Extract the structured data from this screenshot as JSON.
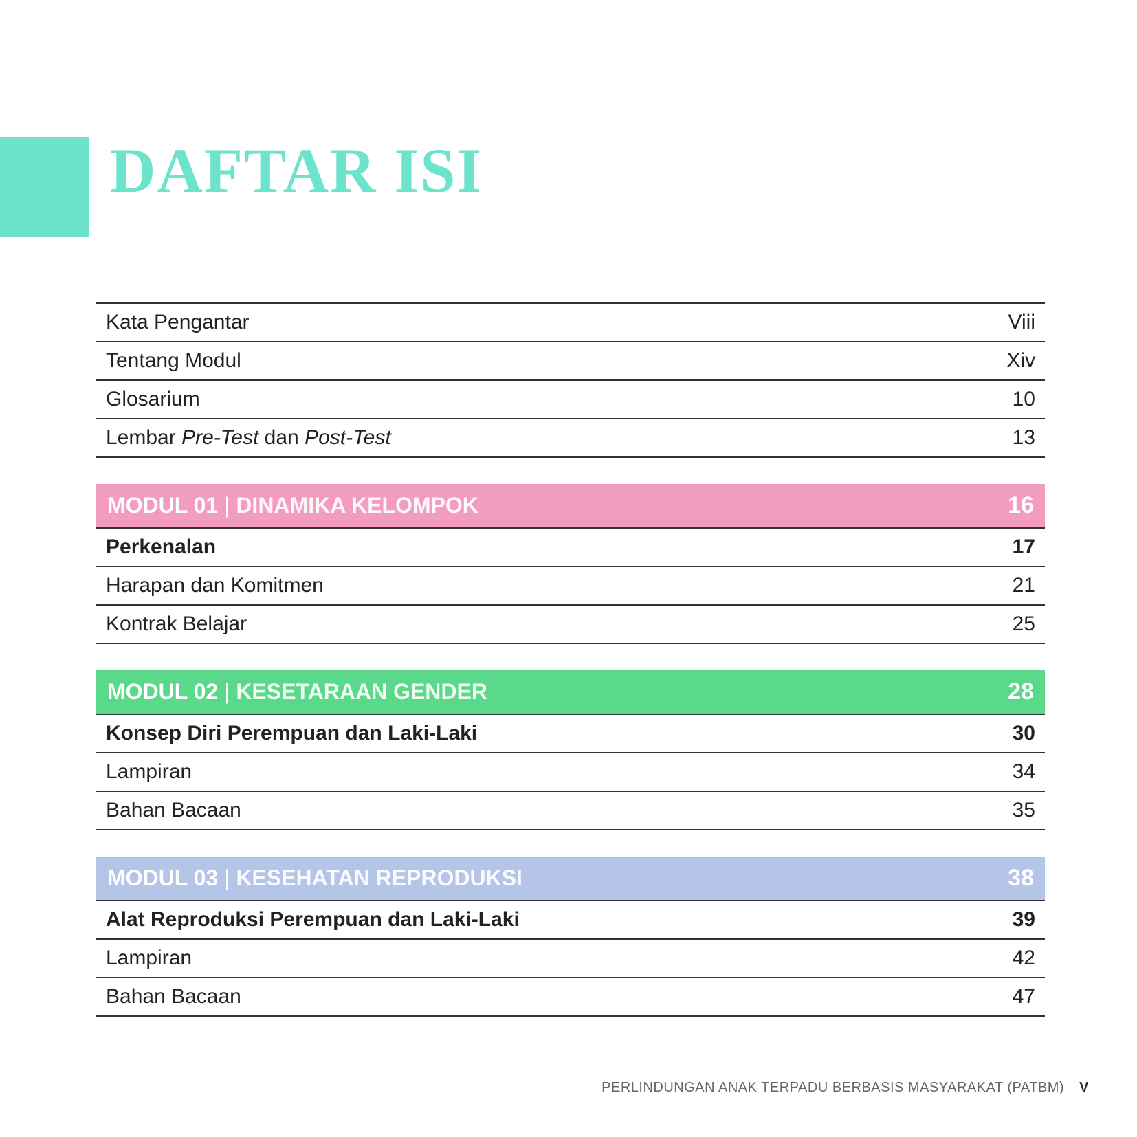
{
  "title": "DAFTAR ISI",
  "colors": {
    "accent": "#6ce4cc",
    "module01_bg": "#f29dc0",
    "module02_bg": "#5bd98a",
    "module03_bg": "#b5c5e8",
    "border": "#333333",
    "text": "#222222"
  },
  "intro_rows": [
    {
      "label": "Kata Pengantar",
      "page": "Viii",
      "bold": false
    },
    {
      "label": "Tentang Modul",
      "page": "Xiv",
      "bold": false
    },
    {
      "label": "Glosarium",
      "page": "10",
      "bold": false
    },
    {
      "label_html": "Lembar <span class=\"italic\">Pre-Test</span> dan <span class=\"italic\">Post-Test</span>",
      "label": "Lembar Pre-Test dan Post-Test",
      "page": "13",
      "bold": false
    }
  ],
  "modules": [
    {
      "modul_label": "MODUL 01",
      "modul_title": "DINAMIKA KELOMPOK",
      "modul_page": "16",
      "bg_color": "#f29dc0",
      "rows": [
        {
          "label": "Perkenalan",
          "page": "17",
          "bold": true
        },
        {
          "label": "Harapan dan Komitmen",
          "page": "21",
          "bold": false
        },
        {
          "label": "Kontrak Belajar",
          "page": "25",
          "bold": false
        }
      ]
    },
    {
      "modul_label": "MODUL 02",
      "modul_title": "KESETARAAN GENDER",
      "modul_page": "28",
      "bg_color": "#5bd98a",
      "rows": [
        {
          "label": "Konsep Diri Perempuan dan Laki-Laki",
          "page": "30",
          "bold": true
        },
        {
          "label": "Lampiran",
          "page": "34",
          "bold": false
        },
        {
          "label": "Bahan Bacaan",
          "page": "35",
          "bold": false
        }
      ]
    },
    {
      "modul_label": "MODUL 03",
      "modul_title": "KESEHATAN REPRODUKSI",
      "modul_page": "38",
      "bg_color": "#b5c5e8",
      "rows": [
        {
          "label": "Alat Reproduksi Perempuan dan Laki-Laki",
          "page": "39",
          "bold": true
        },
        {
          "label": "Lampiran",
          "page": "42",
          "bold": false
        },
        {
          "label": "Bahan Bacaan",
          "page": "47",
          "bold": false
        }
      ]
    }
  ],
  "footer": {
    "text": "PERLINDUNGAN ANAK TERPADU BERBASIS MASYARAKAT (PATBM)",
    "page_number": "V"
  }
}
